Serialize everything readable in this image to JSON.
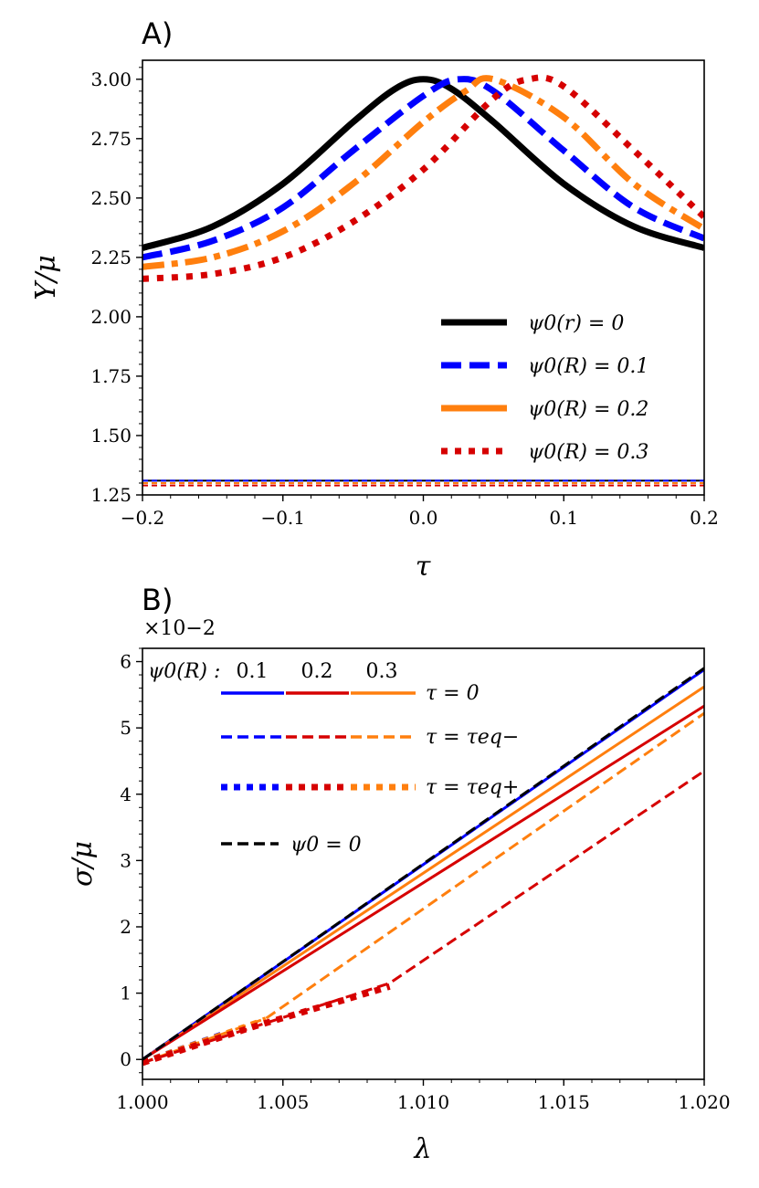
{
  "chart_data": [
    {
      "panel_label": "A)",
      "type": "line",
      "xlabel": "τ",
      "ylabel": "Y/μ",
      "xlim": [
        -0.2,
        0.2
      ],
      "ylim": [
        1.25,
        3.08
      ],
      "xticks": [
        "−0.2",
        "−0.1",
        "0.0",
        "0.1",
        "0.2"
      ],
      "xtick_values": [
        -0.2,
        -0.1,
        0.0,
        0.1,
        0.2
      ],
      "yticks": [
        "1.25",
        "1.50",
        "1.75",
        "2.00",
        "2.25",
        "2.50",
        "2.75",
        "3.00"
      ],
      "ytick_values": [
        1.25,
        1.5,
        1.75,
        2.0,
        2.25,
        2.5,
        2.75,
        3.0
      ],
      "legend_position": "lower-right",
      "series": [
        {
          "name": "ψ0(r) = 0",
          "color": "#000000",
          "style": "solid",
          "x": [
            -0.2,
            -0.15,
            -0.1,
            -0.05,
            -0.02,
            0.0,
            0.02,
            0.05,
            0.1,
            0.15,
            0.2
          ],
          "y": [
            2.29,
            2.38,
            2.56,
            2.82,
            2.96,
            3.0,
            2.96,
            2.82,
            2.56,
            2.38,
            2.29
          ],
          "asymptote": 1.31
        },
        {
          "name": "ψ0(R) = 0.1",
          "color": "#0000ff",
          "style": "dashed",
          "x": [
            -0.2,
            -0.15,
            -0.1,
            -0.05,
            0.0,
            0.025,
            0.05,
            0.1,
            0.15,
            0.2
          ],
          "y": [
            2.25,
            2.32,
            2.46,
            2.7,
            2.93,
            3.0,
            2.95,
            2.7,
            2.46,
            2.33
          ],
          "asymptote": 1.31
        },
        {
          "name": "ψ0(R) = 0.2",
          "color": "#ff7f0e",
          "style": "dashdot",
          "x": [
            -0.2,
            -0.15,
            -0.1,
            -0.05,
            0.0,
            0.03,
            0.05,
            0.1,
            0.15,
            0.2
          ],
          "y": [
            2.21,
            2.25,
            2.36,
            2.56,
            2.82,
            2.95,
            3.0,
            2.84,
            2.56,
            2.37
          ],
          "asymptote": 1.3
        },
        {
          "name": "ψ0(R) = 0.3",
          "color": "#d60000",
          "style": "dotted",
          "x": [
            -0.2,
            -0.15,
            -0.1,
            -0.05,
            0.0,
            0.05,
            0.075,
            0.1,
            0.15,
            0.2
          ],
          "y": [
            2.16,
            2.18,
            2.25,
            2.4,
            2.62,
            2.92,
            3.0,
            2.97,
            2.7,
            2.42
          ],
          "asymptote": 1.29
        }
      ]
    },
    {
      "panel_label": "B)",
      "type": "line",
      "xlabel": "λ",
      "ylabel": "σ/μ",
      "scale_note": "×10−2",
      "xlim": [
        1.0,
        1.02
      ],
      "ylim": [
        -0.3,
        6.2
      ],
      "xticks": [
        "1.000",
        "1.005",
        "1.010",
        "1.015",
        "1.020"
      ],
      "xtick_values": [
        1.0,
        1.005,
        1.01,
        1.015,
        1.02
      ],
      "yticks": [
        "0",
        "1",
        "2",
        "3",
        "4",
        "5",
        "6"
      ],
      "ytick_values": [
        0,
        1,
        2,
        3,
        4,
        5,
        6
      ],
      "legend_position": "top-left",
      "legend_header": "ψ0(R) :",
      "legend_values": [
        "0.1",
        "0.2",
        "0.3"
      ],
      "legend_rows": [
        "τ = 0",
        "τ = τeq−",
        "τ = τeq+",
        "ψ0 = 0"
      ],
      "series": [
        {
          "name": "ψ0(R)=0.1, τ=0",
          "color": "#0000ff",
          "style": "solid",
          "x": [
            1.0,
            1.02
          ],
          "y": [
            0.0,
            5.88
          ]
        },
        {
          "name": "ψ0(R)=0.3, τ=0",
          "color": "#ff7f0e",
          "style": "solid",
          "x": [
            1.0,
            1.02
          ],
          "y": [
            0.0,
            5.62
          ]
        },
        {
          "name": "ψ0(R)=0.2, τ=0",
          "color": "#d60000",
          "style": "solid",
          "x": [
            1.0,
            1.02
          ],
          "y": [
            0.0,
            5.33
          ]
        },
        {
          "name": "ψ0(R)=0.3, τ=τeq−",
          "color": "#ff7f0e",
          "style": "dashed",
          "x": [
            1.0,
            1.0044,
            1.02
          ],
          "y": [
            -0.05,
            0.62,
            5.22
          ]
        },
        {
          "name": "ψ0(R)=0.2, τ=τeq−",
          "color": "#d60000",
          "style": "dashed",
          "x": [
            1.0,
            1.0088,
            1.02
          ],
          "y": [
            -0.05,
            1.15,
            4.35
          ]
        },
        {
          "name": "ψ0(R)=0.1, τ=τeq−",
          "color": "#0000ff",
          "style": "dashed",
          "x": [
            1.0,
            1.02
          ],
          "y": [
            0.0,
            5.88
          ]
        },
        {
          "name": "ψ0(R)=0.1, τ=τeq+",
          "color": "#0000ff",
          "style": "dotted",
          "x": [
            1.0,
            1.003
          ],
          "y": [
            -0.05,
            0.4
          ]
        },
        {
          "name": "ψ0(R)=0.3, τ=τeq+",
          "color": "#ff7f0e",
          "style": "dotted",
          "x": [
            1.0,
            1.0044
          ],
          "y": [
            -0.05,
            0.6
          ]
        },
        {
          "name": "ψ0(R)=0.2, τ=τeq+",
          "color": "#d60000",
          "style": "dotted",
          "x": [
            1.0,
            1.004,
            1.0088
          ],
          "y": [
            -0.05,
            0.5,
            1.1
          ]
        },
        {
          "name": "ψ0 = 0",
          "color": "#000000",
          "style": "dashed",
          "x": [
            1.0,
            1.02
          ],
          "y": [
            0.0,
            5.9
          ]
        }
      ]
    }
  ]
}
